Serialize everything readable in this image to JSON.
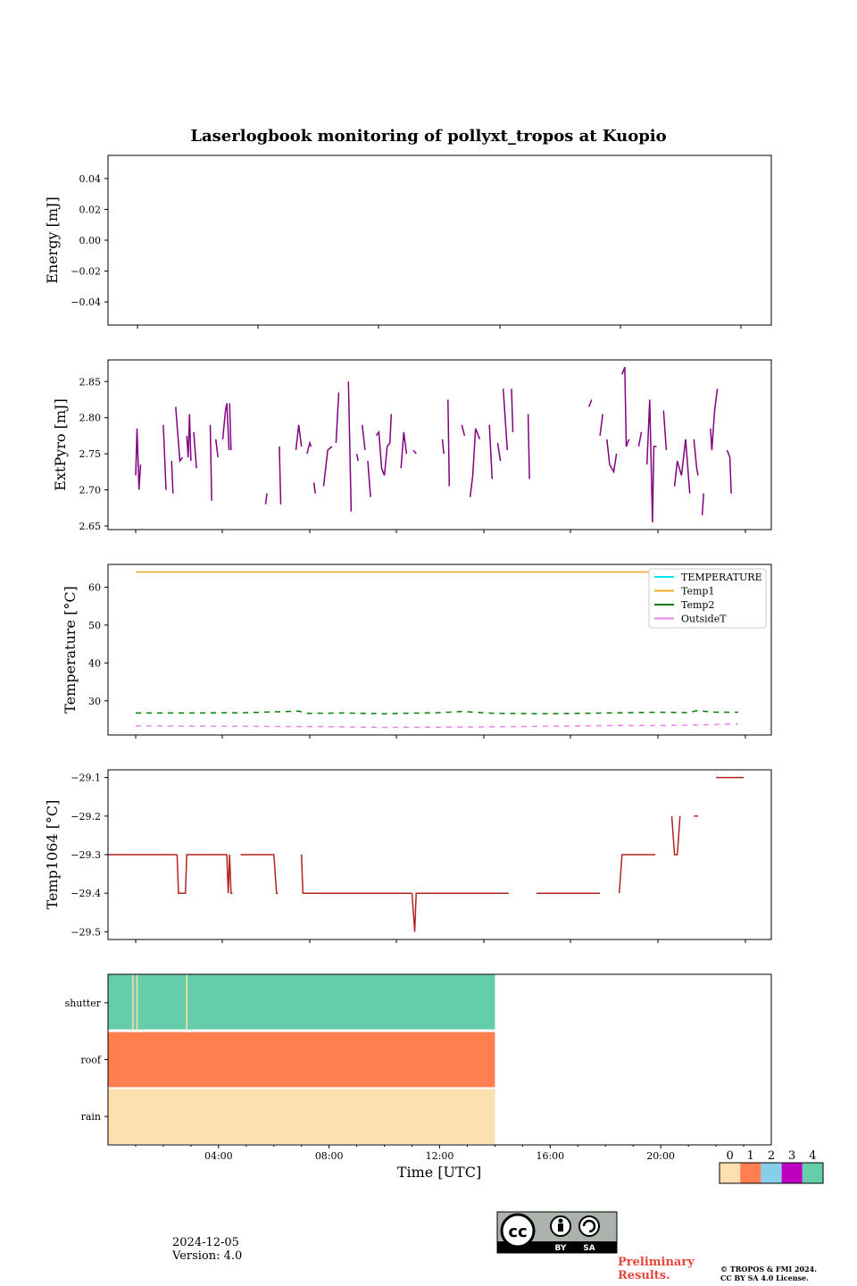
{
  "title": "Laserlogbook monitoring of pollyxt_tropos at Kuopio",
  "footer": {
    "date": "2024-12-05",
    "version": "Version: 4.0",
    "preliminary_line1": "Preliminary",
    "preliminary_line2": "Results.",
    "copyright_line1": "© TROPOS & FMI 2024.",
    "copyright_line2": "CC BY SA 4.0 License."
  },
  "license_badge": {
    "text1": "BY",
    "text2": "SA"
  },
  "chart_data": [
    {
      "type": "line",
      "ylabel": "Energy [mJ]",
      "ylim": [
        -0.055,
        0.055
      ],
      "yticks": [
        -0.04,
        -0.02,
        0.0,
        0.02,
        0.04
      ],
      "ytick_labels": [
        "−0.04",
        "−0.02",
        "0.00",
        "0.02",
        "0.04"
      ],
      "series": []
    },
    {
      "type": "line",
      "ylabel": "ExtPyro [mJ]",
      "ylim": [
        2.645,
        2.88
      ],
      "yticks": [
        2.65,
        2.7,
        2.75,
        2.8,
        2.85
      ],
      "ytick_labels": [
        "2.65",
        "2.70",
        "2.75",
        "2.80",
        "2.85"
      ],
      "color": "#800080",
      "segments": [
        [
          [
            1.0,
            2.72
          ],
          [
            1.05,
            2.785
          ],
          [
            1.12,
            2.7
          ],
          [
            1.18,
            2.735
          ]
        ],
        [
          [
            2.0,
            2.79
          ],
          [
            2.1,
            2.7
          ]
        ],
        [
          [
            2.3,
            2.74
          ],
          [
            2.35,
            2.695
          ]
        ],
        [
          [
            2.45,
            2.815
          ],
          [
            2.6,
            2.74
          ],
          [
            2.7,
            2.745
          ]
        ],
        [
          [
            2.85,
            2.775
          ],
          [
            2.9,
            2.745
          ],
          [
            2.95,
            2.805
          ],
          [
            3.0,
            2.74
          ]
        ],
        [
          [
            3.1,
            2.78
          ],
          [
            3.2,
            2.73
          ]
        ],
        [
          [
            3.7,
            2.79
          ],
          [
            3.75,
            2.685
          ]
        ],
        [
          [
            3.9,
            2.77
          ],
          [
            3.98,
            2.745
          ]
        ],
        [
          [
            4.15,
            2.77
          ],
          [
            4.25,
            2.81
          ],
          [
            4.3,
            2.82
          ],
          [
            4.38,
            2.755
          ]
        ],
        [
          [
            4.4,
            2.82
          ],
          [
            4.45,
            2.755
          ]
        ],
        [
          [
            5.7,
            2.68
          ],
          [
            5.75,
            2.695
          ]
        ],
        [
          [
            6.2,
            2.76
          ],
          [
            6.25,
            2.68
          ]
        ],
        [
          [
            6.8,
            2.755
          ],
          [
            6.9,
            2.79
          ],
          [
            7.0,
            2.76
          ]
        ],
        [
          [
            7.2,
            2.75
          ],
          [
            7.3,
            2.765
          ],
          [
            7.35,
            2.76
          ]
        ],
        [
          [
            7.45,
            2.71
          ],
          [
            7.5,
            2.695
          ]
        ],
        [
          [
            7.8,
            2.705
          ],
          [
            7.95,
            2.755
          ],
          [
            8.1,
            2.76
          ]
        ],
        [
          [
            8.25,
            2.765
          ],
          [
            8.35,
            2.835
          ]
        ],
        [
          [
            8.7,
            2.85
          ],
          [
            8.8,
            2.67
          ]
        ],
        [
          [
            9.0,
            2.75
          ],
          [
            9.05,
            2.74
          ]
        ],
        [
          [
            9.2,
            2.79
          ],
          [
            9.3,
            2.755
          ]
        ],
        [
          [
            9.4,
            2.74
          ],
          [
            9.5,
            2.69
          ]
        ],
        [
          [
            9.7,
            2.775
          ],
          [
            9.8,
            2.78
          ],
          [
            9.9,
            2.73
          ],
          [
            10.0,
            2.72
          ],
          [
            10.1,
            2.76
          ],
          [
            10.2,
            2.765
          ],
          [
            10.25,
            2.805
          ]
        ],
        [
          [
            10.6,
            2.73
          ],
          [
            10.7,
            2.78
          ],
          [
            10.8,
            2.75
          ]
        ],
        [
          [
            11.05,
            2.755
          ],
          [
            11.15,
            2.75
          ]
        ],
        [
          [
            12.1,
            2.77
          ],
          [
            12.15,
            2.75
          ]
        ],
        [
          [
            12.3,
            2.825
          ],
          [
            12.35,
            2.705
          ]
        ],
        [
          [
            12.8,
            2.79
          ],
          [
            12.9,
            2.775
          ]
        ],
        [
          [
            13.1,
            2.69
          ],
          [
            13.2,
            2.72
          ],
          [
            13.3,
            2.785
          ],
          [
            13.45,
            2.77
          ]
        ],
        [
          [
            13.8,
            2.79
          ],
          [
            13.9,
            2.715
          ]
        ],
        [
          [
            14.1,
            2.765
          ],
          [
            14.2,
            2.74
          ]
        ],
        [
          [
            14.3,
            2.84
          ],
          [
            14.45,
            2.755
          ]
        ],
        [
          [
            14.6,
            2.84
          ],
          [
            14.65,
            2.78
          ]
        ],
        [
          [
            15.2,
            2.805
          ],
          [
            15.25,
            2.715
          ]
        ],
        [
          [
            17.4,
            2.815
          ],
          [
            17.5,
            2.825
          ]
        ],
        [
          [
            17.8,
            2.775
          ],
          [
            17.9,
            2.805
          ]
        ],
        [
          [
            18.05,
            2.77
          ],
          [
            18.15,
            2.735
          ],
          [
            18.3,
            2.725
          ],
          [
            18.4,
            2.75
          ]
        ],
        [
          [
            18.6,
            2.86
          ],
          [
            18.7,
            2.87
          ],
          [
            18.75,
            2.76
          ],
          [
            18.85,
            2.77
          ]
        ],
        [
          [
            19.2,
            2.76
          ],
          [
            19.3,
            2.78
          ]
        ],
        [
          [
            19.5,
            2.735
          ],
          [
            19.6,
            2.825
          ],
          [
            19.7,
            2.655
          ],
          [
            19.75,
            2.76
          ],
          [
            19.85,
            2.76
          ]
        ],
        [
          [
            20.1,
            2.81
          ],
          [
            20.2,
            2.755
          ]
        ],
        [
          [
            20.5,
            2.705
          ],
          [
            20.6,
            2.74
          ],
          [
            20.75,
            2.72
          ],
          [
            20.9,
            2.77
          ],
          [
            21.05,
            2.695
          ]
        ],
        [
          [
            21.2,
            2.77
          ],
          [
            21.3,
            2.73
          ],
          [
            21.35,
            2.72
          ]
        ],
        [
          [
            21.5,
            2.665
          ],
          [
            21.55,
            2.695
          ]
        ],
        [
          [
            21.8,
            2.785
          ],
          [
            21.85,
            2.755
          ],
          [
            21.95,
            2.81
          ],
          [
            22.05,
            2.84
          ]
        ],
        [
          [
            22.4,
            2.755
          ],
          [
            22.5,
            2.745
          ],
          [
            22.55,
            2.695
          ]
        ]
      ]
    },
    {
      "type": "line",
      "ylabel": "Temperature [°C]",
      "ylim": [
        21.0,
        66.0
      ],
      "yticks": [
        30,
        40,
        50,
        60
      ],
      "ytick_labels": [
        "30",
        "40",
        "50",
        "60"
      ],
      "legend_placement": "top-right",
      "series": [
        {
          "name": "TEMPERATURE",
          "color": "#00e5e5",
          "points": []
        },
        {
          "name": "Temp1",
          "color": "#f5a623",
          "points": [
            [
              1.0,
              64.0
            ],
            [
              20.8,
              64.0
            ]
          ]
        },
        {
          "name": "Temp2",
          "color": "#008000",
          "dashed": true,
          "points": [
            [
              1.0,
              26.8
            ],
            [
              3.0,
              26.8
            ],
            [
              5.0,
              26.9
            ],
            [
              6.9,
              27.3
            ],
            [
              7.2,
              26.7
            ],
            [
              8.5,
              26.8
            ],
            [
              10.0,
              26.6
            ],
            [
              12.0,
              26.9
            ],
            [
              12.8,
              27.2
            ],
            [
              14.0,
              26.7
            ],
            [
              16.0,
              26.6
            ],
            [
              18.0,
              26.8
            ],
            [
              20.0,
              27.0
            ],
            [
              21.0,
              26.9
            ],
            [
              21.3,
              27.4
            ],
            [
              22.0,
              27.0
            ],
            [
              22.8,
              27.0
            ]
          ]
        },
        {
          "name": "OutsideT",
          "color": "#ee82ee",
          "dashed": true,
          "points": [
            [
              1.0,
              23.4
            ],
            [
              4.0,
              23.3
            ],
            [
              8.0,
              23.2
            ],
            [
              10.0,
              23.0
            ],
            [
              13.0,
              23.1
            ],
            [
              16.0,
              23.3
            ],
            [
              18.0,
              23.5
            ],
            [
              20.0,
              23.5
            ],
            [
              21.0,
              23.6
            ],
            [
              22.8,
              23.9
            ]
          ]
        }
      ]
    },
    {
      "type": "line",
      "ylabel": "Temp1064 [°C]",
      "ylim": [
        -29.52,
        -29.08
      ],
      "yticks": [
        -29.5,
        -29.4,
        -29.3,
        -29.2,
        -29.1
      ],
      "ytick_labels": [
        "−29.5",
        "−29.4",
        "−29.3",
        "−29.2",
        "−29.1"
      ],
      "color": "#b22222",
      "segments": [
        [
          [
            0.0,
            -29.3
          ],
          [
            2.5,
            -29.3
          ]
        ],
        [
          [
            2.5,
            -29.3
          ],
          [
            2.55,
            -29.4
          ],
          [
            2.8,
            -29.4
          ],
          [
            2.85,
            -29.3
          ],
          [
            4.3,
            -29.3
          ],
          [
            4.35,
            -29.4
          ],
          [
            4.4,
            -29.3
          ],
          [
            4.45,
            -29.4
          ],
          [
            4.5,
            -29.4
          ]
        ],
        [
          [
            4.8,
            -29.3
          ],
          [
            6.0,
            -29.3
          ],
          [
            6.1,
            -29.4
          ],
          [
            6.15,
            -29.4
          ]
        ],
        [
          [
            7.0,
            -29.3
          ],
          [
            7.05,
            -29.4
          ],
          [
            11.0,
            -29.4
          ]
        ],
        [
          [
            11.0,
            -29.4
          ],
          [
            11.1,
            -29.5
          ],
          [
            11.15,
            -29.4
          ],
          [
            14.5,
            -29.4
          ]
        ],
        [
          [
            15.5,
            -29.4
          ],
          [
            17.8,
            -29.4
          ]
        ],
        [
          [
            18.5,
            -29.4
          ],
          [
            18.6,
            -29.3
          ],
          [
            19.8,
            -29.3
          ]
        ],
        [
          [
            20.4,
            -29.2
          ],
          [
            20.5,
            -29.3
          ],
          [
            20.6,
            -29.3
          ],
          [
            20.7,
            -29.2
          ]
        ],
        [
          [
            21.2,
            -29.2
          ],
          [
            21.35,
            -29.2
          ]
        ],
        [
          [
            22.0,
            -29.1
          ],
          [
            23.0,
            -29.1
          ]
        ]
      ]
    },
    {
      "type": "heatmap",
      "rows": [
        "shutter",
        "roof",
        "rain"
      ],
      "xlabel": "Time [UTC]",
      "xticks": [
        4,
        8,
        12,
        16,
        20
      ],
      "xtick_labels": [
        "04:00",
        "08:00",
        "12:00",
        "16:00",
        "20:00"
      ],
      "xlim": [
        0,
        24
      ],
      "data_end_hour": 14.0,
      "row_values": {
        "shutter": 4,
        "roof": 1,
        "rain": 0
      },
      "shutter_gaps_hours": [
        0.9,
        1.05,
        2.85
      ],
      "colorbar": {
        "labels": [
          "0",
          "1",
          "2",
          "3",
          "4"
        ],
        "colors": [
          "#fde0b0",
          "#ff7f50",
          "#87ceeb",
          "#c000c0",
          "#66cdaa"
        ]
      }
    }
  ]
}
